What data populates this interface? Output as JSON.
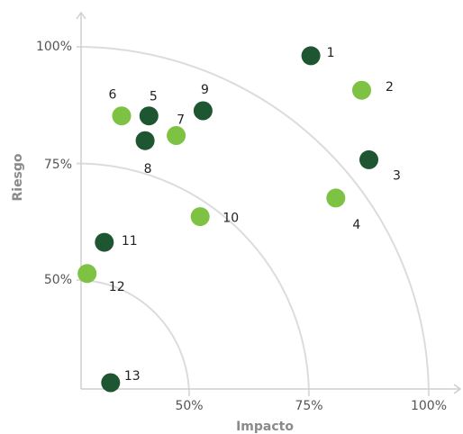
{
  "chart_data": {
    "type": "scatter",
    "title": "",
    "xlabel": "Impacto",
    "ylabel": "Riesgo",
    "xlim": [
      25,
      110
    ],
    "ylim": [
      25,
      105
    ],
    "grid": false,
    "x_ticks": [
      "50%",
      "75%",
      "100%"
    ],
    "y_ticks": [
      "50%",
      "75%",
      "100%"
    ],
    "reference_arcs": [
      50,
      75,
      100
    ],
    "colors": {
      "dark": "#1e5631",
      "light": "#7dc242",
      "arc": "#dcdcdc",
      "axis": "#cfcfcf"
    },
    "points": [
      {
        "label": "1",
        "x": 75.4,
        "y": 97.7,
        "color": "dark"
      },
      {
        "label": "2",
        "x": 86.0,
        "y": 90.3,
        "color": "light"
      },
      {
        "label": "3",
        "x": 87.5,
        "y": 75.4,
        "color": "dark"
      },
      {
        "label": "4",
        "x": 80.6,
        "y": 67.2,
        "color": "light"
      },
      {
        "label": "5",
        "x": 41.6,
        "y": 84.8,
        "color": "dark"
      },
      {
        "label": "6",
        "x": 35.9,
        "y": 84.8,
        "color": "light"
      },
      {
        "label": "7",
        "x": 47.3,
        "y": 80.6,
        "color": "light"
      },
      {
        "label": "8",
        "x": 40.8,
        "y": 79.5,
        "color": "dark"
      },
      {
        "label": "9",
        "x": 52.9,
        "y": 85.9,
        "color": "dark"
      },
      {
        "label": "10",
        "x": 52.3,
        "y": 63.2,
        "color": "light"
      },
      {
        "label": "11",
        "x": 32.3,
        "y": 57.7,
        "color": "dark"
      },
      {
        "label": "12",
        "x": 28.7,
        "y": 51.0,
        "color": "light"
      },
      {
        "label": "13",
        "x": 33.6,
        "y": 27.6,
        "color": "dark"
      }
    ]
  }
}
